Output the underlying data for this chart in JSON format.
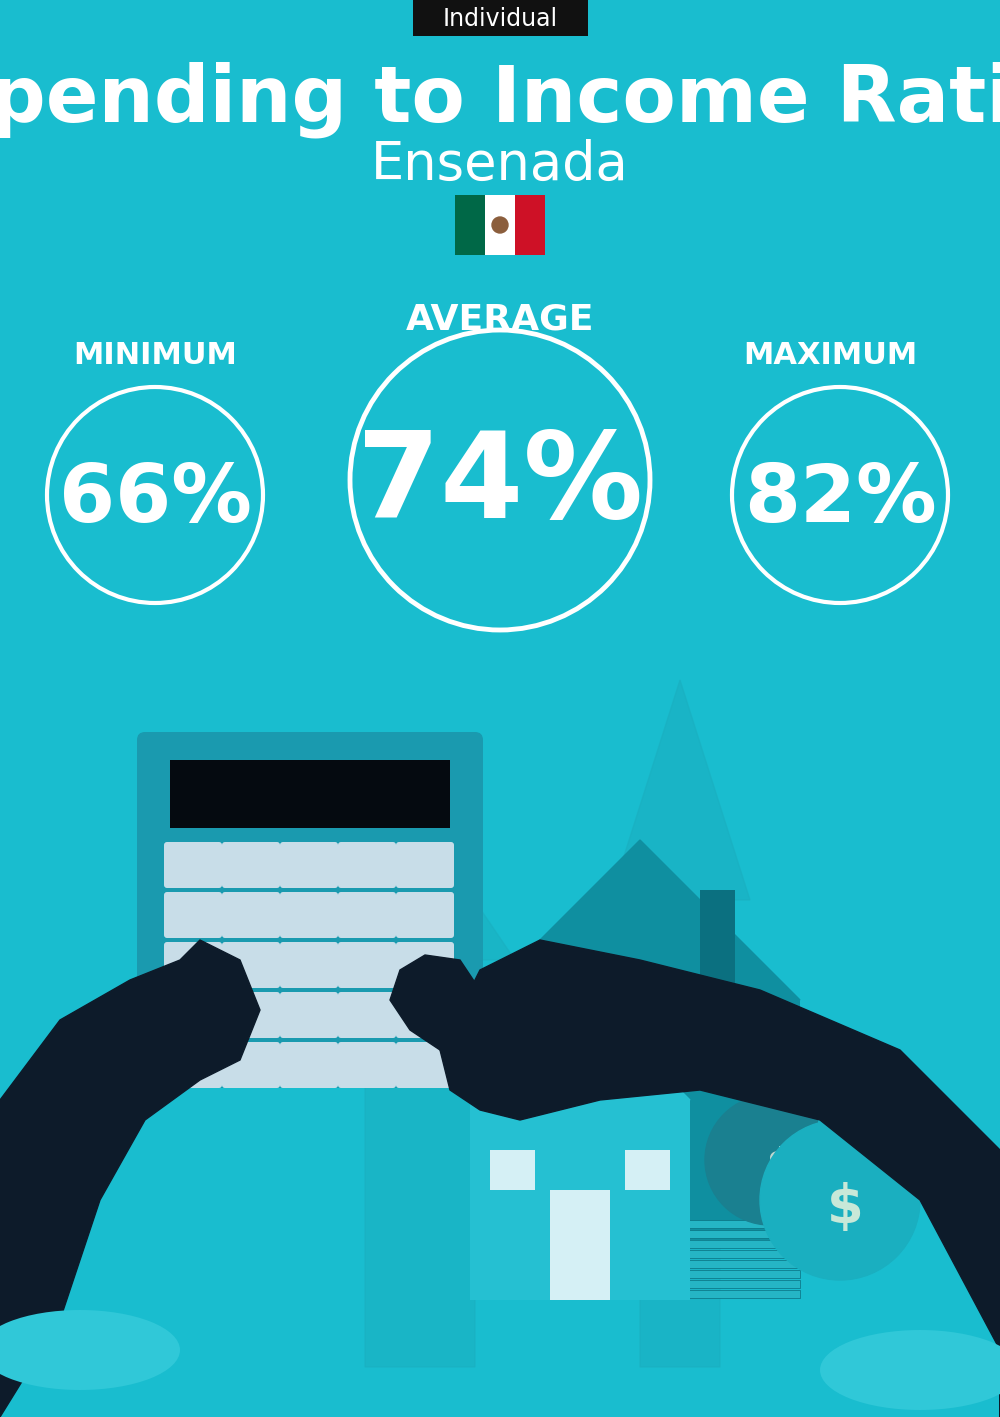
{
  "bg_color": "#19BDCF",
  "title": "Spending to Income Ratio",
  "subtitle": "Ensenada",
  "tag_text": "Individual",
  "tag_bg": "#111111",
  "tag_text_color": "#ffffff",
  "title_color": "#ffffff",
  "subtitle_color": "#ffffff",
  "label_color": "#ffffff",
  "value_color": "#ffffff",
  "circle_color": "#ffffff",
  "min_label": "MINIMUM",
  "avg_label": "AVERAGE",
  "max_label": "MAXIMUM",
  "min_value": "66%",
  "avg_value": "74%",
  "max_value": "82%",
  "accent_light": "#2EC8D8",
  "accent_mid": "#1AAFC0",
  "accent_dark": "#0F8FA0",
  "dark_navy": "#0D1B2A",
  "cuff_color": "#30C8D8",
  "calc_body": "#1A9AAF",
  "calc_screen": "#050A10",
  "btn_color": "#C8DDE8",
  "house_light": "#25C0D2",
  "house_mid": "#1AACBE",
  "house_dark": "#0E8FA0",
  "money_dark": "#0A6070",
  "flag_green": "#006847",
  "flag_white": "#FFFFFF",
  "flag_red": "#CE1126"
}
